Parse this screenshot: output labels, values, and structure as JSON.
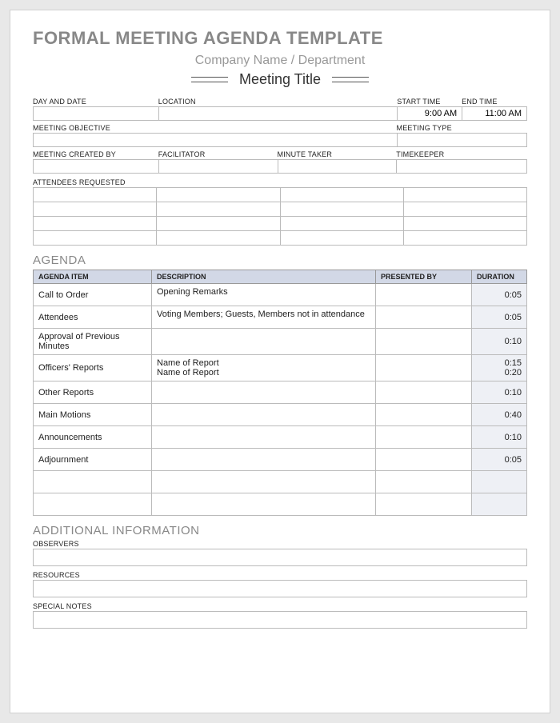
{
  "header": {
    "title": "FORMAL MEETING AGENDA TEMPLATE",
    "subtitle": "Company Name / Department",
    "meeting_title": "Meeting Title"
  },
  "labels": {
    "day_date": "DAY AND DATE",
    "location": "LOCATION",
    "start_time": "START TIME",
    "end_time": "END TIME",
    "objective": "MEETING OBJECTIVE",
    "meeting_type": "MEETING TYPE",
    "created_by": "MEETING CREATED BY",
    "facilitator": "FACILITATOR",
    "minute_taker": "MINUTE TAKER",
    "timekeeper": "TIMEKEEPER",
    "attendees": "ATTENDEES REQUESTED",
    "observers": "OBSERVERS",
    "resources": "RESOURCES",
    "special_notes": "SPECIAL NOTES"
  },
  "values": {
    "start_time": "9:00 AM",
    "end_time": "11:00 AM"
  },
  "sections": {
    "agenda": "AGENDA",
    "additional": "ADDITIONAL INFORMATION"
  },
  "agenda": {
    "columns": {
      "item": "AGENDA ITEM",
      "desc": "DESCRIPTION",
      "presented": "PRESENTED BY",
      "duration": "DURATION"
    },
    "rows": [
      {
        "item": "Call to Order",
        "desc": "Opening Remarks",
        "presented": "",
        "duration": "0:05"
      },
      {
        "item": "Attendees",
        "desc": "Voting Members; Guests, Members not in attendance",
        "presented": "",
        "duration": "0:05"
      },
      {
        "item": "Approval of Previous Minutes",
        "desc": "",
        "presented": "",
        "duration": "0:10"
      },
      {
        "item": "Officers' Reports",
        "desc": "Name of Report\nName of Report",
        "presented": "",
        "duration": "0:15\n0:20"
      },
      {
        "item": "Other Reports",
        "desc": "",
        "presented": "",
        "duration": "0:10"
      },
      {
        "item": "Main Motions",
        "desc": "",
        "presented": "",
        "duration": "0:40"
      },
      {
        "item": "Announcements",
        "desc": "",
        "presented": "",
        "duration": "0:10"
      },
      {
        "item": "Adjournment",
        "desc": "",
        "presented": "",
        "duration": "0:05"
      },
      {
        "item": "",
        "desc": "",
        "presented": "",
        "duration": ""
      },
      {
        "item": "",
        "desc": "",
        "presented": "",
        "duration": ""
      }
    ]
  },
  "colors": {
    "header_bg": "#d2d8e6",
    "duration_bg": "#eef0f5",
    "border": "#bbbbbb",
    "title_gray": "#888888"
  }
}
